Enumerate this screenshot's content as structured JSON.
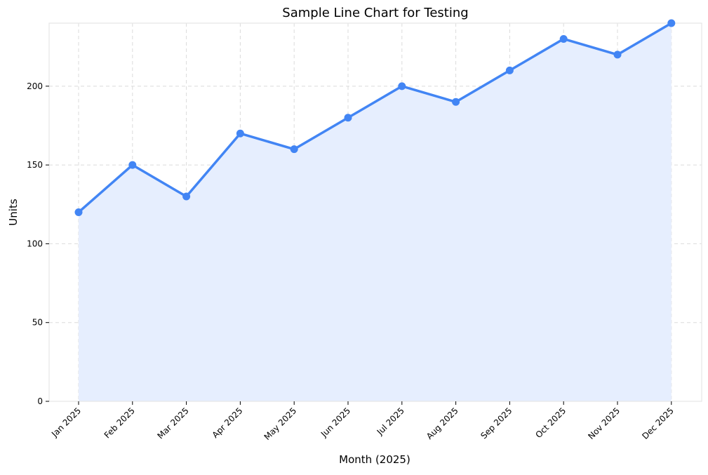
{
  "chart_data": {
    "type": "line",
    "title": "Sample Line Chart for Testing",
    "xlabel": "Month (2025)",
    "ylabel": "Units",
    "categories": [
      "Jan 2025",
      "Feb 2025",
      "Mar 2025",
      "Apr 2025",
      "May 2025",
      "Jun 2025",
      "Jul 2025",
      "Aug 2025",
      "Sep 2025",
      "Oct 2025",
      "Nov 2025",
      "Dec 2025"
    ],
    "series": [
      {
        "values": [
          120,
          150,
          130,
          170,
          160,
          180,
          200,
          190,
          210,
          230,
          220,
          240
        ],
        "color": "#4285f4",
        "fill_color": "#e6eefe",
        "area_fill": true,
        "markers": true
      }
    ],
    "ylim": [
      0,
      240
    ],
    "yticks": [
      0,
      50,
      100,
      150,
      200
    ],
    "grid": true,
    "legend": "none"
  }
}
